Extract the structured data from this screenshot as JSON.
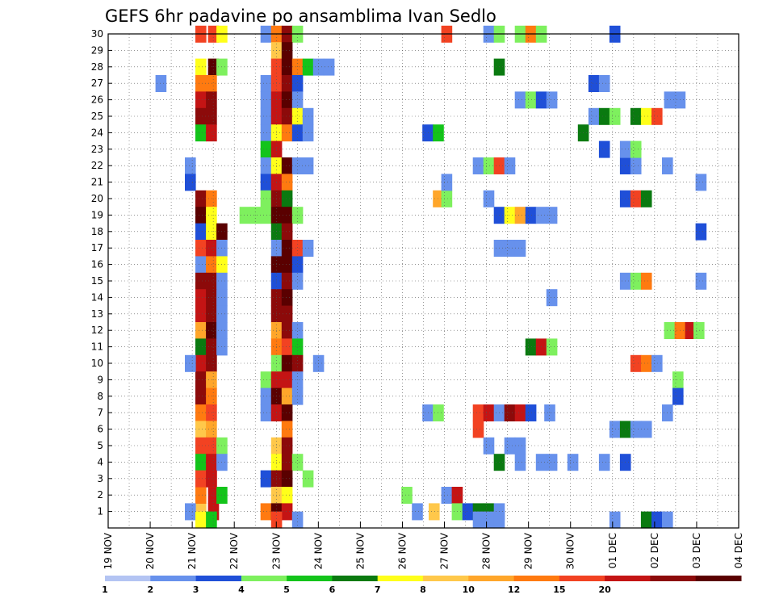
{
  "chart_data": {
    "type": "heatmap",
    "title": "GEFS 6hr padavine po ansamblima Ivan Sedlo",
    "xlabel": "",
    "ylabel": "",
    "x_ticks": [
      "19 NOV",
      "20 NOV",
      "21 NOV",
      "22 NOV",
      "23 NOV",
      "24 NOV",
      "25 NOV",
      "26 NOV",
      "27 NOV",
      "28 NOV",
      "29 NOV",
      "30 NOV",
      "01 DEC",
      "02 DEC",
      "03 DEC",
      "04 DEC"
    ],
    "x_range_days": [
      0,
      15
    ],
    "y_ticks": [
      "1",
      "2",
      "3",
      "4",
      "5",
      "6",
      "7",
      "8",
      "9",
      "10",
      "11",
      "12",
      "13",
      "14",
      "15",
      "16",
      "17",
      "18",
      "19",
      "20",
      "21",
      "22",
      "23",
      "24",
      "25",
      "26",
      "27",
      "28",
      "29",
      "30"
    ],
    "y_range": [
      0,
      30
    ],
    "grid": true,
    "legend": {
      "placement": "bottom",
      "labels": [
        "1",
        "2",
        "3",
        "4",
        "5",
        "6",
        "7",
        "8",
        "10",
        "12",
        "15",
        "20"
      ],
      "colors": [
        "#b3c4f3",
        "#6791ec",
        "#1f4fd8",
        "#7ef05e",
        "#13c41a",
        "#0a7a10",
        "#ffff1a",
        "#ffc84a",
        "#ffa62a",
        "#ff7a10",
        "#f24222",
        "#c41414",
        "#8c0a0a",
        "#5a0000"
      ]
    },
    "cells": [
      [
        2.2,
        1,
        7
      ],
      [
        2.2,
        2,
        9
      ],
      [
        2.5,
        1,
        11
      ],
      [
        2.5,
        2,
        11
      ],
      [
        2.7,
        2,
        4
      ],
      [
        2.45,
        3,
        10
      ],
      [
        2.2,
        30,
        10
      ],
      [
        2.5,
        30,
        10
      ],
      [
        2.7,
        30,
        6
      ],
      [
        2.2,
        28,
        6
      ],
      [
        2.5,
        28,
        13
      ],
      [
        2.7,
        28,
        3
      ],
      [
        2.2,
        27,
        9
      ],
      [
        2.45,
        27,
        9
      ],
      [
        2.2,
        26,
        11
      ],
      [
        2.45,
        26,
        12
      ],
      [
        2.2,
        25,
        12
      ],
      [
        2.45,
        25,
        12
      ],
      [
        2.2,
        24,
        4
      ],
      [
        2.45,
        24,
        11
      ],
      [
        2.2,
        20,
        12
      ],
      [
        2.45,
        20,
        9
      ],
      [
        2.2,
        19,
        13
      ],
      [
        2.45,
        19,
        6
      ],
      [
        2.2,
        18,
        2
      ],
      [
        2.45,
        18,
        6
      ],
      [
        2.7,
        18,
        13
      ],
      [
        2.2,
        17,
        10
      ],
      [
        2.45,
        17,
        11
      ],
      [
        2.7,
        17,
        1
      ],
      [
        2.2,
        16,
        1
      ],
      [
        2.45,
        16,
        9
      ],
      [
        2.7,
        16,
        6
      ],
      [
        2.2,
        15,
        12
      ],
      [
        2.45,
        15,
        12
      ],
      [
        2.7,
        15,
        1
      ],
      [
        2.2,
        14,
        11
      ],
      [
        2.45,
        14,
        12
      ],
      [
        2.7,
        14,
        1
      ],
      [
        2.2,
        13,
        11
      ],
      [
        2.45,
        13,
        12
      ],
      [
        2.7,
        13,
        1
      ],
      [
        2.2,
        12,
        8
      ],
      [
        2.45,
        12,
        13
      ],
      [
        2.7,
        12,
        1
      ],
      [
        2.2,
        11,
        5
      ],
      [
        2.45,
        11,
        12
      ],
      [
        2.7,
        11,
        1
      ],
      [
        2.2,
        10,
        11
      ],
      [
        2.45,
        10,
        12
      ],
      [
        2.2,
        9,
        12
      ],
      [
        2.45,
        9,
        8
      ],
      [
        2.2,
        8,
        12
      ],
      [
        2.45,
        8,
        9
      ],
      [
        2.2,
        7,
        9
      ],
      [
        2.45,
        7,
        10
      ],
      [
        2.2,
        6,
        7
      ],
      [
        2.45,
        6,
        8
      ],
      [
        2.2,
        5,
        10
      ],
      [
        2.45,
        5,
        10
      ],
      [
        2.7,
        5,
        3
      ],
      [
        2.2,
        4,
        4
      ],
      [
        2.45,
        4,
        11
      ],
      [
        2.7,
        4,
        1
      ],
      [
        2.2,
        3,
        10
      ],
      [
        2.45,
        3,
        11
      ],
      [
        1.95,
        10,
        1
      ],
      [
        1.95,
        1,
        1
      ],
      [
        1.95,
        22,
        1
      ],
      [
        1.95,
        21,
        2
      ],
      [
        3.75,
        30,
        1
      ],
      [
        4.0,
        30,
        9
      ],
      [
        4.25,
        30,
        12
      ],
      [
        4.5,
        30,
        3
      ],
      [
        4.0,
        29,
        7
      ],
      [
        4.25,
        29,
        13
      ],
      [
        4.0,
        28,
        10
      ],
      [
        4.25,
        28,
        13
      ],
      [
        4.5,
        28,
        9
      ],
      [
        4.75,
        28,
        4
      ],
      [
        5.0,
        28,
        1
      ],
      [
        5.25,
        28,
        1
      ],
      [
        3.75,
        27,
        1
      ],
      [
        4.0,
        27,
        10
      ],
      [
        4.25,
        27,
        12
      ],
      [
        4.5,
        27,
        2
      ],
      [
        3.75,
        26,
        1
      ],
      [
        4.0,
        26,
        11
      ],
      [
        4.25,
        26,
        13
      ],
      [
        4.5,
        26,
        1
      ],
      [
        3.75,
        25,
        1
      ],
      [
        4.0,
        25,
        11
      ],
      [
        4.25,
        25,
        12
      ],
      [
        4.5,
        25,
        6
      ],
      [
        4.75,
        25,
        1
      ],
      [
        3.75,
        24,
        1
      ],
      [
        4.0,
        24,
        6
      ],
      [
        4.25,
        24,
        9
      ],
      [
        4.5,
        24,
        2
      ],
      [
        4.75,
        24,
        1
      ],
      [
        3.75,
        23,
        4
      ],
      [
        4.0,
        23,
        11
      ],
      [
        3.75,
        22,
        1
      ],
      [
        4.0,
        22,
        6
      ],
      [
        4.25,
        22,
        13
      ],
      [
        4.5,
        22,
        1
      ],
      [
        4.75,
        22,
        1
      ],
      [
        3.75,
        21,
        2
      ],
      [
        4.0,
        21,
        11
      ],
      [
        4.25,
        21,
        9
      ],
      [
        3.75,
        20,
        3
      ],
      [
        4.0,
        20,
        12
      ],
      [
        4.25,
        20,
        5
      ],
      [
        3.75,
        19,
        3
      ],
      [
        4.0,
        19,
        13
      ],
      [
        4.25,
        19,
        13
      ],
      [
        4.5,
        19,
        3
      ],
      [
        3.25,
        19,
        3
      ],
      [
        3.5,
        19,
        3
      ],
      [
        4.0,
        18,
        5
      ],
      [
        4.25,
        18,
        12
      ],
      [
        4.0,
        17,
        1
      ],
      [
        4.25,
        17,
        13
      ],
      [
        4.5,
        17,
        10
      ],
      [
        4.75,
        17,
        1
      ],
      [
        4.0,
        16,
        13
      ],
      [
        4.25,
        16,
        13
      ],
      [
        4.5,
        16,
        2
      ],
      [
        4.0,
        15,
        2
      ],
      [
        4.25,
        15,
        12
      ],
      [
        4.5,
        15,
        1
      ],
      [
        4.0,
        14,
        12
      ],
      [
        4.25,
        14,
        13
      ],
      [
        4.0,
        13,
        12
      ],
      [
        4.25,
        13,
        12
      ],
      [
        4.0,
        12,
        8
      ],
      [
        4.25,
        12,
        12
      ],
      [
        4.5,
        12,
        1
      ],
      [
        4.0,
        11,
        9
      ],
      [
        4.25,
        11,
        10
      ],
      [
        4.5,
        11,
        4
      ],
      [
        4.0,
        10,
        3
      ],
      [
        4.25,
        10,
        13
      ],
      [
        4.5,
        10,
        12
      ],
      [
        3.75,
        9,
        3
      ],
      [
        4.0,
        9,
        11
      ],
      [
        4.25,
        9,
        11
      ],
      [
        4.5,
        9,
        1
      ],
      [
        3.75,
        8,
        1
      ],
      [
        4.0,
        8,
        13
      ],
      [
        4.25,
        8,
        8
      ],
      [
        4.5,
        8,
        1
      ],
      [
        3.75,
        7,
        1
      ],
      [
        4.0,
        7,
        11
      ],
      [
        4.25,
        7,
        13
      ],
      [
        4.25,
        6,
        9
      ],
      [
        4.0,
        5,
        7
      ],
      [
        4.25,
        5,
        12
      ],
      [
        4.0,
        4,
        6
      ],
      [
        4.25,
        4,
        12
      ],
      [
        4.5,
        4,
        3
      ],
      [
        3.75,
        3,
        2
      ],
      [
        4.0,
        3,
        12
      ],
      [
        4.25,
        3,
        13
      ],
      [
        4.0,
        2,
        7
      ],
      [
        4.25,
        2,
        6
      ],
      [
        3.75,
        1,
        9
      ],
      [
        4.0,
        1,
        13
      ],
      [
        4.25,
        1,
        11
      ],
      [
        5.0,
        10,
        1
      ],
      [
        4.75,
        3,
        3
      ],
      [
        4.5,
        0.5,
        1
      ],
      [
        1.25,
        27,
        1
      ],
      [
        7.1,
        2,
        3
      ],
      [
        7.35,
        1,
        1
      ],
      [
        8.05,
        2,
        1
      ],
      [
        7.75,
        1,
        7
      ],
      [
        8.3,
        2,
        11
      ],
      [
        8.3,
        1,
        3
      ],
      [
        8.55,
        1,
        2
      ],
      [
        8.8,
        1,
        5
      ],
      [
        9.05,
        1,
        5
      ],
      [
        9.3,
        1,
        1
      ],
      [
        7.6,
        7,
        1
      ],
      [
        7.85,
        7,
        3
      ],
      [
        8.8,
        7,
        10
      ],
      [
        9.05,
        7,
        11
      ],
      [
        9.3,
        7,
        1
      ],
      [
        9.55,
        7,
        12
      ],
      [
        9.8,
        7,
        11
      ],
      [
        10.05,
        7,
        2
      ],
      [
        10.5,
        7,
        1
      ],
      [
        8.8,
        6,
        10
      ],
      [
        9.05,
        5,
        1
      ],
      [
        9.55,
        5,
        1
      ],
      [
        9.8,
        5,
        1
      ],
      [
        9.8,
        4,
        1
      ],
      [
        10.3,
        4,
        1
      ],
      [
        10.55,
        4,
        1
      ],
      [
        11.05,
        4,
        1
      ],
      [
        9.3,
        4,
        5
      ],
      [
        11.8,
        4,
        1
      ],
      [
        12.3,
        4,
        2
      ],
      [
        12.05,
        6,
        1
      ],
      [
        12.3,
        6,
        5
      ],
      [
        12.55,
        6,
        1
      ],
      [
        12.8,
        6,
        1
      ],
      [
        13.3,
        7,
        1
      ],
      [
        13.55,
        9,
        3
      ],
      [
        13.55,
        8,
        2
      ],
      [
        12.55,
        10,
        10
      ],
      [
        12.8,
        10,
        9
      ],
      [
        13.05,
        10,
        1
      ],
      [
        10.05,
        11,
        5
      ],
      [
        10.3,
        11,
        11
      ],
      [
        10.55,
        11,
        3
      ],
      [
        13.35,
        12,
        3
      ],
      [
        13.6,
        12,
        9
      ],
      [
        13.85,
        12,
        11
      ],
      [
        14.05,
        12,
        3
      ],
      [
        10.55,
        14,
        1
      ],
      [
        12.3,
        15,
        1
      ],
      [
        12.55,
        15,
        3
      ],
      [
        12.8,
        15,
        9
      ],
      [
        14.1,
        15,
        1
      ],
      [
        9.3,
        17,
        1
      ],
      [
        9.55,
        17,
        1
      ],
      [
        9.8,
        17,
        1
      ],
      [
        14.1,
        18,
        2
      ],
      [
        9.3,
        19,
        2
      ],
      [
        9.55,
        19,
        6
      ],
      [
        9.8,
        19,
        8
      ],
      [
        10.05,
        19,
        2
      ],
      [
        10.3,
        19,
        1
      ],
      [
        10.55,
        19,
        1
      ],
      [
        7.85,
        20,
        8
      ],
      [
        8.05,
        20,
        3
      ],
      [
        9.05,
        20,
        1
      ],
      [
        12.3,
        20,
        2
      ],
      [
        12.55,
        20,
        10
      ],
      [
        12.8,
        20,
        5
      ],
      [
        8.05,
        21,
        1
      ],
      [
        14.1,
        21,
        1
      ],
      [
        8.8,
        22,
        1
      ],
      [
        9.05,
        22,
        3
      ],
      [
        9.3,
        22,
        10
      ],
      [
        9.55,
        22,
        1
      ],
      [
        12.3,
        22,
        2
      ],
      [
        12.55,
        22,
        1
      ],
      [
        13.3,
        22,
        1
      ],
      [
        11.8,
        23,
        2
      ],
      [
        12.3,
        23,
        1
      ],
      [
        12.55,
        23,
        3
      ],
      [
        7.6,
        24,
        2
      ],
      [
        7.85,
        24,
        4
      ],
      [
        11.3,
        24,
        5
      ],
      [
        11.55,
        25,
        1
      ],
      [
        11.8,
        25,
        5
      ],
      [
        12.05,
        25,
        3
      ],
      [
        12.55,
        25,
        5
      ],
      [
        12.8,
        25,
        6
      ],
      [
        13.05,
        25,
        10
      ],
      [
        9.8,
        26,
        1
      ],
      [
        10.05,
        26,
        3
      ],
      [
        10.3,
        26,
        2
      ],
      [
        10.55,
        26,
        1
      ],
      [
        13.35,
        26,
        1
      ],
      [
        13.6,
        26,
        1
      ],
      [
        11.55,
        27,
        2
      ],
      [
        11.8,
        27,
        1
      ],
      [
        9.3,
        28,
        5
      ],
      [
        9.05,
        30,
        1
      ],
      [
        9.3,
        30,
        3
      ],
      [
        9.8,
        30,
        3
      ],
      [
        10.05,
        30,
        9
      ],
      [
        10.3,
        30,
        3
      ],
      [
        12.05,
        30,
        2
      ],
      [
        8.05,
        30,
        10
      ],
      [
        12.05,
        0.5,
        1
      ],
      [
        12.8,
        0.5,
        5
      ],
      [
        13.05,
        0.5,
        2
      ],
      [
        13.3,
        0.5,
        1
      ],
      [
        8.8,
        0.5,
        1
      ],
      [
        9.05,
        0.5,
        1
      ],
      [
        9.3,
        0.5,
        1
      ],
      [
        2.2,
        0.5,
        6
      ],
      [
        2.45,
        0.5,
        4
      ],
      [
        4.0,
        0.5,
        10
      ]
    ]
  }
}
